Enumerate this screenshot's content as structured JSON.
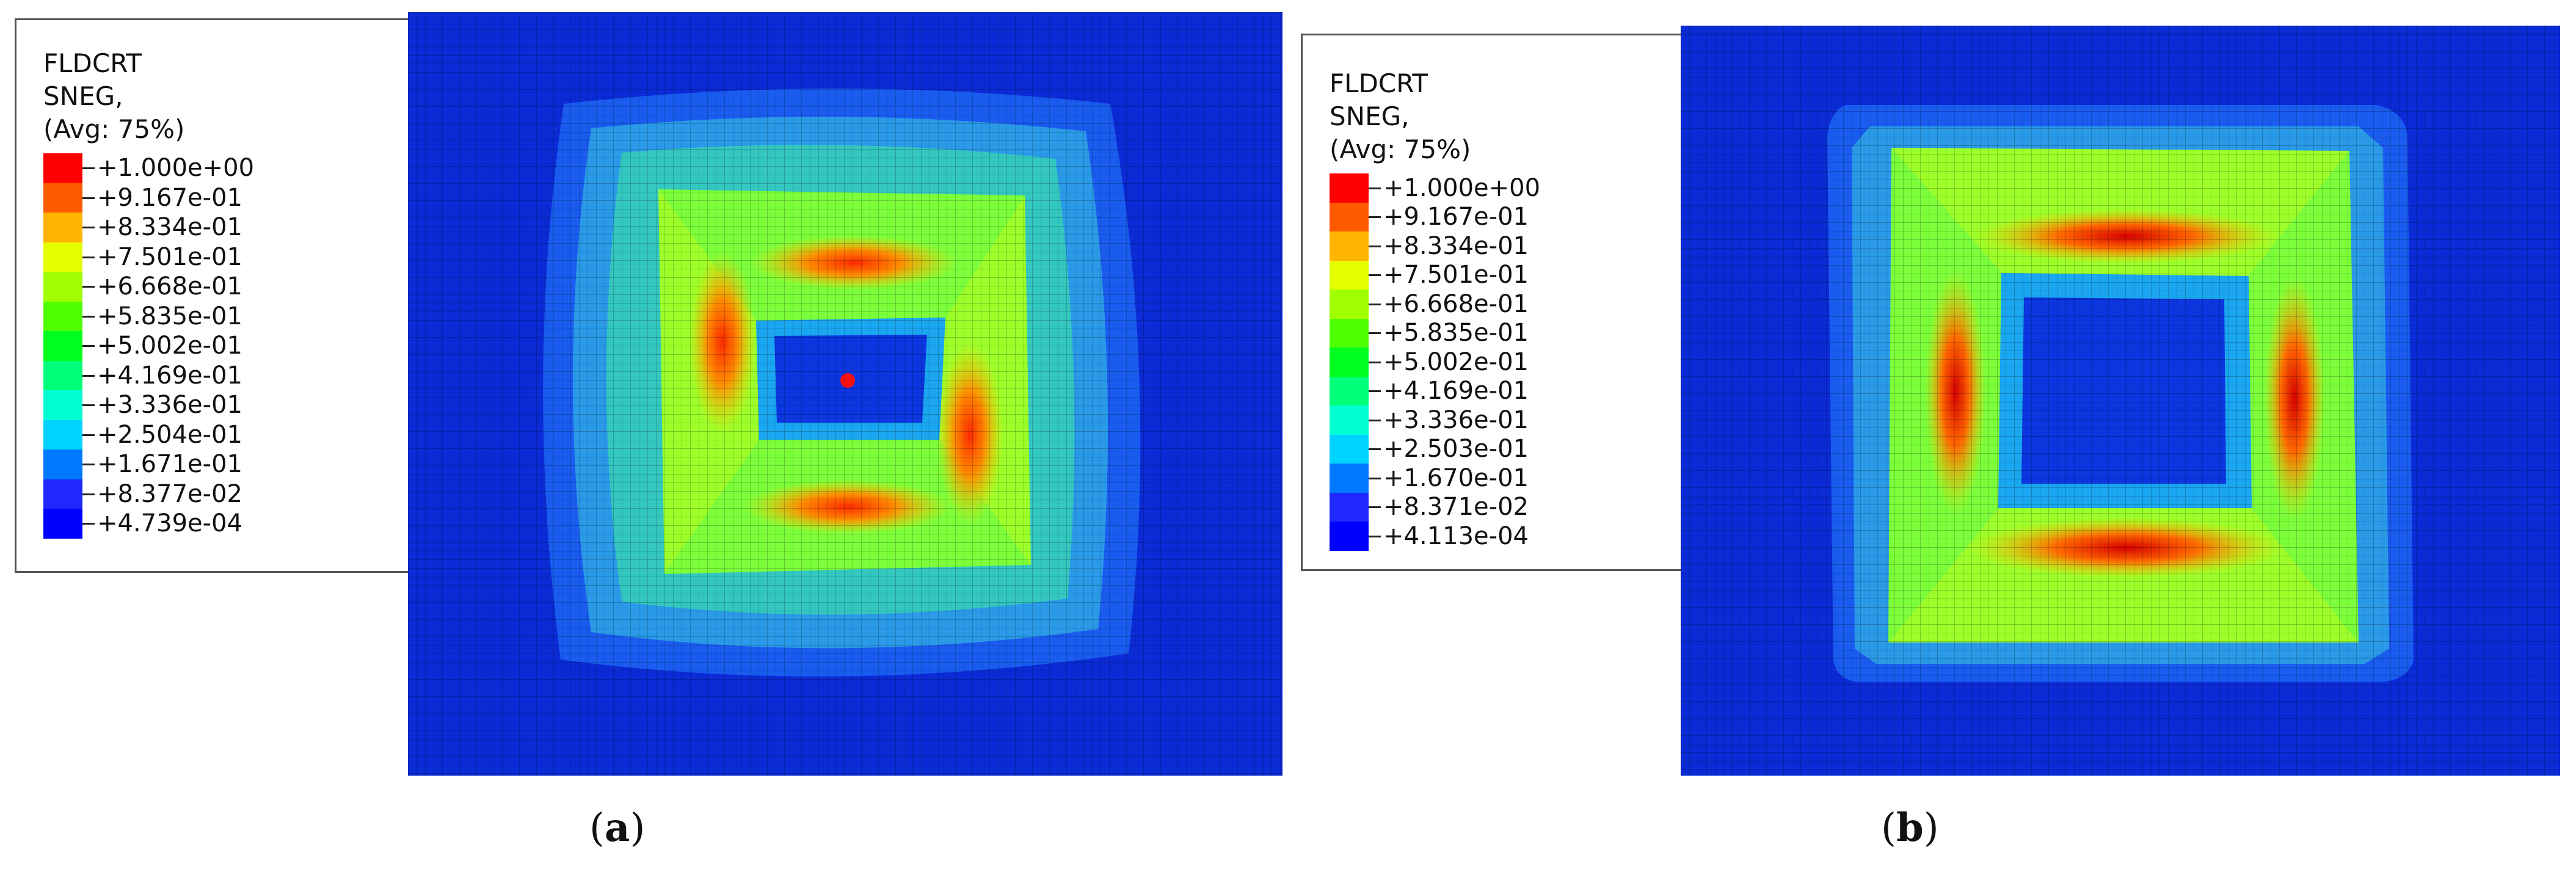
{
  "panels": [
    {
      "id": "a",
      "title_lines": [
        "FLDCRT",
        "SNEG,",
        "(Avg: 75%)"
      ],
      "legend_values": [
        "+1.000e+00",
        "+9.167e-01",
        "+8.334e-01",
        "+7.501e-01",
        "+6.668e-01",
        "+5.835e-01",
        "+5.002e-01",
        "+4.169e-01",
        "+3.336e-01",
        "+2.504e-01",
        "+1.671e-01",
        "+8.377e-02",
        "+4.739e-04"
      ],
      "caption_letter": "a"
    },
    {
      "id": "b",
      "title_lines": [
        "FLDCRT",
        "SNEG,",
        "(Avg: 75%)"
      ],
      "legend_values": [
        "+1.000e+00",
        "+9.167e-01",
        "+8.334e-01",
        "+7.501e-01",
        "+6.668e-01",
        "+5.835e-01",
        "+5.002e-01",
        "+4.169e-01",
        "+3.336e-01",
        "+2.503e-01",
        "+1.670e-01",
        "+8.371e-02",
        "+4.113e-04"
      ],
      "caption_letter": "b"
    }
  ],
  "colors": {
    "scale": [
      "#ff0000",
      "#ff5a00",
      "#ffb400",
      "#e6ff00",
      "#a0ff00",
      "#50ff00",
      "#00ff1e",
      "#00ff7a",
      "#00ffd2",
      "#00d2ff",
      "#0078ff",
      "#1e28ff",
      "#0000ff"
    ],
    "background_mesh": "#0b2bd6"
  }
}
